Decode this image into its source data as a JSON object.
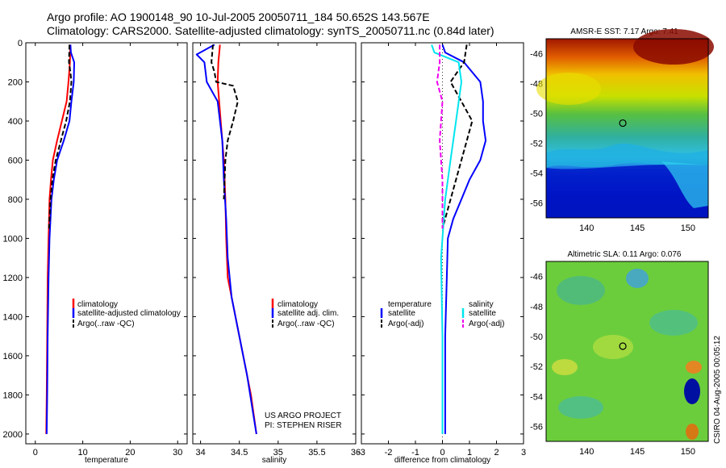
{
  "header": {
    "line1": "Argo profile: AO 1900148_90 10-Jul-2005 20050711_184 50.652S 143.567E",
    "line2": "Climatology: CARS2000. Satellite-adjusted climatology: synTS_20050711.nc (0.84d later)"
  },
  "side_label": "CSIRO 04-Aug-2005 00:05:12",
  "credits": [
    "US ARGO PROJECT",
    "PI: STEPHEN RISER"
  ],
  "colors": {
    "climatology": "#ff0000",
    "satellite": "#0000ff",
    "argo": "#000000",
    "salinity_satellite": "#00e5ee",
    "salinity_argo": "#ee00ee"
  },
  "chart_data": [
    {
      "type": "line",
      "xlabel": "temperature",
      "xlim": [
        -2,
        32
      ],
      "xticks": [
        0,
        10,
        20,
        30
      ],
      "ylim": [
        0,
        2050
      ],
      "yticks": [
        0,
        200,
        400,
        600,
        800,
        1000,
        1200,
        1400,
        1600,
        1800,
        2000
      ],
      "y_reversed": true,
      "legend": {
        "placement": "lower-right",
        "entries": [
          "climatology",
          "satellite-adjusted climatology",
          "Argo(..raw -QC)"
        ]
      },
      "series": [
        {
          "name": "climatology",
          "color": "#ff0000",
          "dash": false,
          "x": [
            7.4,
            7.3,
            7.0,
            6.6,
            5.6,
            4.6,
            3.7,
            3.3,
            3.0,
            2.8,
            2.6,
            2.5,
            2.4,
            2.3
          ],
          "y": [
            10,
            100,
            200,
            300,
            400,
            500,
            600,
            700,
            800,
            1000,
            1200,
            1500,
            1800,
            2000
          ]
        },
        {
          "name": "satellite-adjusted climatology",
          "color": "#0000ff",
          "dash": false,
          "x": [
            7.4,
            7.5,
            8.2,
            8.1,
            7.6,
            7.2,
            6.0,
            4.6,
            3.9,
            3.4,
            3.0,
            2.8,
            2.6,
            2.5,
            2.4
          ],
          "y": [
            10,
            50,
            100,
            200,
            300,
            400,
            500,
            600,
            700,
            800,
            1000,
            1200,
            1500,
            1800,
            2000
          ]
        },
        {
          "name": "Argo(..raw -QC)",
          "color": "#000000",
          "dash": true,
          "x": [
            7.2,
            7.1,
            7.4,
            7.6,
            7.3,
            6.5,
            5.4,
            4.3,
            3.6,
            3.2,
            2.9
          ],
          "y": [
            10,
            100,
            150,
            200,
            300,
            400,
            500,
            600,
            700,
            800,
            950
          ]
        }
      ]
    },
    {
      "type": "line",
      "xlabel": "salinity",
      "xlim": [
        33.9,
        36.0
      ],
      "xticks": [
        34,
        34.5,
        35,
        35.5,
        36
      ],
      "ylim": [
        0,
        2050
      ],
      "y_reversed": true,
      "legend": {
        "placement": "lower-right",
        "entries": [
          "climatology",
          "satellite adj. clim.",
          "Argo(..raw -QC)"
        ]
      },
      "annotations": [
        "US ARGO PROJECT",
        "PI: STEPHEN RISER"
      ],
      "series": [
        {
          "name": "climatology",
          "color": "#ff0000",
          "dash": false,
          "x": [
            34.25,
            34.23,
            34.22,
            34.26,
            34.3,
            34.32,
            34.33,
            34.35,
            34.45,
            34.55,
            34.65,
            34.72
          ],
          "y": [
            10,
            100,
            200,
            400,
            600,
            800,
            1000,
            1200,
            1400,
            1600,
            1800,
            2000
          ]
        },
        {
          "name": "satellite adj. clim.",
          "color": "#0000ff",
          "dash": false,
          "x": [
            34.18,
            33.95,
            34.05,
            34.08,
            34.22,
            34.28,
            34.3,
            34.33,
            34.35,
            34.4,
            34.5,
            34.6,
            34.68,
            34.72
          ],
          "y": [
            10,
            60,
            100,
            200,
            300,
            500,
            700,
            900,
            1100,
            1300,
            1500,
            1700,
            1900,
            2000
          ]
        },
        {
          "name": "Argo(..raw -QC)",
          "color": "#000000",
          "dash": true,
          "x": [
            34.16,
            34.14,
            34.18,
            34.2,
            34.42,
            34.48,
            34.42,
            34.35,
            34.32,
            34.3
          ],
          "y": [
            10,
            100,
            150,
            200,
            220,
            300,
            400,
            500,
            600,
            800
          ]
        }
      ]
    },
    {
      "type": "line",
      "xlabel": "difference from climatology",
      "xlim": [
        -3,
        3
      ],
      "xticks": [
        -3,
        -2,
        -1,
        0,
        1,
        2,
        3
      ],
      "ylim": [
        0,
        2050
      ],
      "y_reversed": true,
      "zero_line": true,
      "legend": {
        "placement": "lower-center",
        "entries": [
          "temperature",
          "satellite",
          "Argo(-adj)",
          "salinity",
          "satellite",
          "Argo(-adj)"
        ]
      },
      "series": [
        {
          "name": "satellite",
          "color": "#0000ff",
          "dash": false,
          "x": [
            0.0,
            0.1,
            0.8,
            1.4,
            1.5,
            1.5,
            1.6,
            1.4,
            1.0,
            0.7,
            0.4,
            0.2,
            0.1,
            0.1
          ],
          "y": [
            10,
            50,
            100,
            200,
            300,
            400,
            500,
            600,
            700,
            800,
            900,
            1000,
            1500,
            2000
          ]
        },
        {
          "name": "Argo(-adj)",
          "color": "#000000",
          "dash": true,
          "x": [
            0.9,
            0.8,
            0.3,
            0.7,
            1.1,
            0.5,
            0.0
          ],
          "y": [
            10,
            100,
            200,
            300,
            400,
            700,
            950
          ]
        },
        {
          "name": "satellite",
          "color": "#00e5ee",
          "dash": false,
          "x": [
            -0.4,
            -0.3,
            0.6,
            0.7,
            0.5,
            0.3,
            0.1,
            0.0,
            -0.05,
            0.0,
            0.0
          ],
          "y": [
            10,
            50,
            100,
            200,
            400,
            600,
            800,
            1000,
            1100,
            1500,
            2000
          ]
        },
        {
          "name": "Argo(-adj)",
          "color": "#ee00ee",
          "dash": true,
          "x": [
            -0.1,
            -0.1,
            -0.2,
            0.0,
            -0.1,
            0.0,
            0.0
          ],
          "y": [
            10,
            100,
            200,
            300,
            500,
            700,
            950
          ]
        }
      ]
    },
    {
      "type": "heatmap",
      "title": "AMSR-E SST: 7.17 Argo: 7.41",
      "xlim": [
        136,
        152
      ],
      "xticks": [
        140,
        145,
        150
      ],
      "ylim": [
        -57,
        -45
      ],
      "yticks": [
        -46,
        -48,
        -50,
        -52,
        -54,
        -56
      ],
      "marker": {
        "lon": 143.567,
        "lat": -50.652
      }
    },
    {
      "type": "heatmap",
      "title": "Altimetric SLA: 0.11 Argo: 0.076",
      "xlim": [
        136,
        152
      ],
      "xticks": [
        140,
        145,
        150
      ],
      "ylim": [
        -57,
        -45
      ],
      "yticks": [
        -46,
        -48,
        -50,
        -52,
        -54,
        -56
      ],
      "marker": {
        "lon": 143.567,
        "lat": -50.652
      }
    }
  ]
}
